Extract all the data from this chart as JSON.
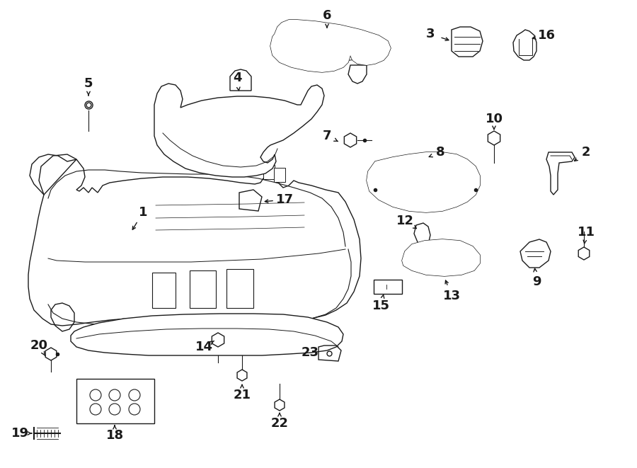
{
  "bg_color": "#ffffff",
  "line_color": "#1a1a1a",
  "figsize": [
    9.0,
    6.61
  ],
  "dpi": 100,
  "lw": 1.0,
  "fontsize": 13
}
